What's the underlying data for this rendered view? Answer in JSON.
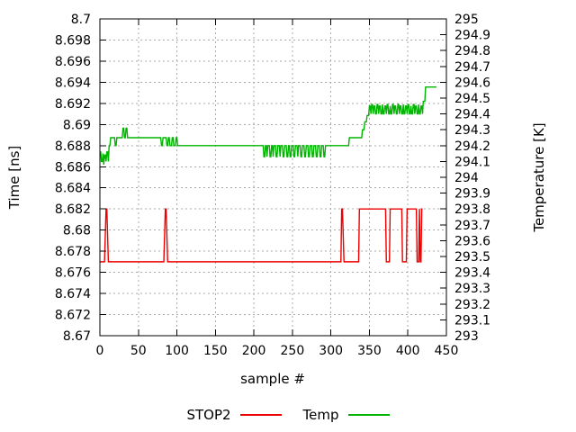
{
  "colors": {
    "background": "#ffffff",
    "frame": "#000000",
    "grid": "#aaaaaa",
    "text": "#000000",
    "stop2": "#ee0000",
    "temp": "#00b400"
  },
  "chart_data": {
    "type": "line",
    "title": "",
    "xlabel": "sample #",
    "ylabel": "Time [ns]",
    "y2label": "Temperature [K]",
    "xlim": [
      0,
      450
    ],
    "ylim": [
      8.67,
      8.7
    ],
    "y2lim": [
      293,
      295
    ],
    "grid": true,
    "xticks": {
      "values": [
        0,
        50,
        100,
        150,
        200,
        250,
        300,
        350,
        400,
        450
      ],
      "labels": [
        "0",
        "50",
        "100",
        "150",
        "200",
        "250",
        "300",
        "350",
        "400",
        "450"
      ]
    },
    "yticks": {
      "values": [
        8.67,
        8.672,
        8.674,
        8.676,
        8.678,
        8.68,
        8.682,
        8.684,
        8.686,
        8.688,
        8.69,
        8.692,
        8.694,
        8.696,
        8.698,
        8.7
      ],
      "labels": [
        "8.67",
        "8.672",
        "8.674",
        "8.676",
        "8.678",
        "8.68",
        "8.682",
        "8.684",
        "8.686",
        "8.688",
        "8.69",
        "8.692",
        "8.694",
        "8.696",
        "8.698",
        "8.7"
      ]
    },
    "y2ticks": {
      "values": [
        293,
        293.1,
        293.2,
        293.3,
        293.4,
        293.5,
        293.6,
        293.7,
        293.8,
        293.9,
        294,
        294.1,
        294.2,
        294.3,
        294.4,
        294.5,
        294.6,
        294.7,
        294.8,
        294.9,
        295
      ],
      "labels": [
        "293",
        "293.1",
        "293.2",
        "293.3",
        "293.4",
        "293.5",
        "293.6",
        "293.7",
        "293.8",
        "293.9",
        "294",
        "294.1",
        "294.2",
        "294.3",
        "294.4",
        "294.5",
        "294.6",
        "294.7",
        "294.8",
        "294.9",
        "295"
      ]
    },
    "legend": {
      "position": "bottom-center",
      "entries": [
        {
          "label": "STOP2",
          "color": "#ee0000"
        },
        {
          "label": "Temp",
          "color": "#00b400"
        }
      ]
    },
    "series": [
      {
        "name": "STOP2",
        "axis": "y",
        "color": "#ee0000",
        "runs": [
          [
            0,
            6,
            8.677
          ],
          [
            7,
            7,
            8.6795
          ],
          [
            8,
            9,
            8.682
          ],
          [
            10,
            10,
            8.6795
          ],
          [
            11,
            83,
            8.677
          ],
          [
            84,
            84,
            8.6795
          ],
          [
            85,
            86,
            8.682
          ],
          [
            87,
            87,
            8.6795
          ],
          [
            88,
            313,
            8.677
          ],
          [
            314,
            315,
            8.682
          ],
          [
            316,
            316,
            8.6795
          ],
          [
            317,
            336,
            8.677
          ],
          [
            337,
            371,
            8.682
          ],
          [
            372,
            376,
            8.677
          ],
          [
            377,
            392,
            8.682
          ],
          [
            393,
            398,
            8.677
          ],
          [
            399,
            411,
            8.682
          ],
          [
            412,
            414,
            8.677
          ],
          [
            415,
            415,
            8.682
          ],
          [
            416,
            417,
            8.677
          ],
          [
            418,
            419,
            8.682
          ]
        ]
      },
      {
        "name": "Temp",
        "axis": "y2",
        "color": "#00b400",
        "runs": [
          [
            0,
            1,
            294.16
          ],
          [
            2,
            3,
            294.1
          ],
          [
            4,
            4,
            294.15
          ],
          [
            5,
            5,
            294.08
          ],
          [
            6,
            7,
            294.14
          ],
          [
            8,
            8,
            294.1
          ],
          [
            9,
            10,
            294.16
          ],
          [
            11,
            11,
            294.1
          ],
          [
            12,
            13,
            294.2
          ],
          [
            14,
            19,
            294.25
          ],
          [
            20,
            21,
            294.2
          ],
          [
            22,
            29,
            294.25
          ],
          [
            30,
            31,
            294.31
          ],
          [
            32,
            33,
            294.25
          ],
          [
            34,
            35,
            294.31
          ],
          [
            36,
            79,
            294.25
          ],
          [
            80,
            81,
            294.2
          ],
          [
            82,
            86,
            294.25
          ],
          [
            87,
            88,
            294.2
          ],
          [
            89,
            90,
            294.25
          ],
          [
            91,
            93,
            294.2
          ],
          [
            94,
            95,
            294.25
          ],
          [
            96,
            98,
            294.2
          ],
          [
            99,
            100,
            294.25
          ],
          [
            101,
            212,
            294.2
          ],
          [
            213,
            214,
            294.13
          ],
          [
            215,
            216,
            294.2
          ],
          [
            217,
            217,
            294.13
          ],
          [
            218,
            220,
            294.2
          ],
          [
            221,
            222,
            294.13
          ],
          [
            223,
            224,
            294.2
          ],
          [
            225,
            225,
            294.13
          ],
          [
            226,
            228,
            294.2
          ],
          [
            229,
            230,
            294.13
          ],
          [
            231,
            233,
            294.2
          ],
          [
            234,
            234,
            294.13
          ],
          [
            235,
            237,
            294.2
          ],
          [
            238,
            239,
            294.13
          ],
          [
            240,
            242,
            294.2
          ],
          [
            243,
            244,
            294.13
          ],
          [
            245,
            246,
            294.2
          ],
          [
            247,
            248,
            294.13
          ],
          [
            249,
            251,
            294.2
          ],
          [
            252,
            253,
            294.13
          ],
          [
            254,
            256,
            294.2
          ],
          [
            257,
            257,
            294.13
          ],
          [
            258,
            260,
            294.2
          ],
          [
            261,
            262,
            294.13
          ],
          [
            263,
            265,
            294.2
          ],
          [
            266,
            267,
            294.13
          ],
          [
            268,
            270,
            294.2
          ],
          [
            271,
            272,
            294.13
          ],
          [
            273,
            275,
            294.2
          ],
          [
            276,
            277,
            294.13
          ],
          [
            278,
            280,
            294.2
          ],
          [
            281,
            282,
            294.13
          ],
          [
            283,
            285,
            294.2
          ],
          [
            286,
            287,
            294.13
          ],
          [
            288,
            290,
            294.2
          ],
          [
            291,
            292,
            294.13
          ],
          [
            293,
            323,
            294.2
          ],
          [
            324,
            340,
            294.25
          ],
          [
            341,
            343,
            294.3
          ],
          [
            344,
            346,
            294.35
          ],
          [
            347,
            349,
            294.39
          ],
          [
            350,
            351,
            294.45
          ],
          [
            352,
            352,
            294.4
          ],
          [
            353,
            354,
            294.46
          ],
          [
            355,
            355,
            294.4
          ],
          [
            356,
            357,
            294.45
          ],
          [
            358,
            359,
            294.4
          ],
          [
            360,
            361,
            294.46
          ],
          [
            362,
            362,
            294.4
          ],
          [
            363,
            364,
            294.45
          ],
          [
            365,
            366,
            294.4
          ],
          [
            367,
            367,
            294.46
          ],
          [
            368,
            369,
            294.4
          ],
          [
            370,
            371,
            294.45
          ],
          [
            372,
            372,
            294.4
          ],
          [
            373,
            374,
            294.46
          ],
          [
            375,
            376,
            294.4
          ],
          [
            377,
            377,
            294.45
          ],
          [
            378,
            379,
            294.4
          ],
          [
            380,
            381,
            294.46
          ],
          [
            382,
            382,
            294.4
          ],
          [
            383,
            384,
            294.45
          ],
          [
            385,
            386,
            294.4
          ],
          [
            387,
            388,
            294.46
          ],
          [
            389,
            389,
            294.4
          ],
          [
            390,
            391,
            294.45
          ],
          [
            392,
            393,
            294.4
          ],
          [
            394,
            394,
            294.46
          ],
          [
            395,
            396,
            294.4
          ],
          [
            397,
            398,
            294.45
          ],
          [
            399,
            399,
            294.4
          ],
          [
            400,
            401,
            294.46
          ],
          [
            402,
            403,
            294.4
          ],
          [
            404,
            404,
            294.45
          ],
          [
            405,
            406,
            294.4
          ],
          [
            407,
            408,
            294.46
          ],
          [
            409,
            409,
            294.4
          ],
          [
            410,
            411,
            294.45
          ],
          [
            412,
            413,
            294.4
          ],
          [
            414,
            414,
            294.46
          ],
          [
            415,
            416,
            294.4
          ],
          [
            417,
            418,
            294.45
          ],
          [
            419,
            419,
            294.4
          ],
          [
            420,
            422,
            294.48
          ],
          [
            423,
            437,
            294.57
          ]
        ]
      }
    ]
  }
}
